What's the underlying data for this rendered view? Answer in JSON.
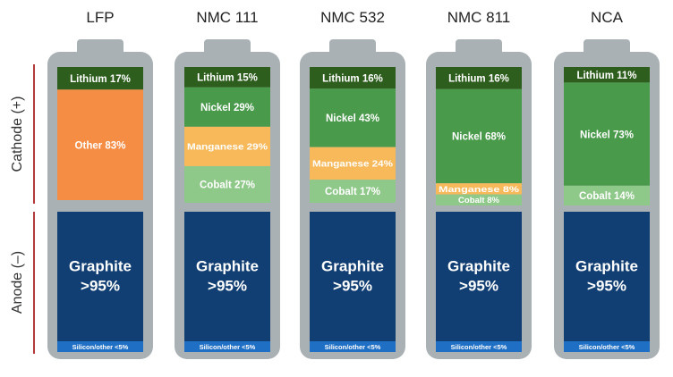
{
  "chart_data": {
    "type": "bar",
    "stacked": true,
    "axis_labels": {
      "cathode": "Cathode (+)",
      "anode": "Anode (–)"
    },
    "colors": {
      "Lithium": "#2e5e1e",
      "Other": "#f68d45",
      "Nickel": "#4a9a4c",
      "Manganese": "#f7b95a",
      "Cobalt": "#8fc98a",
      "Graphite": "#123f73",
      "Silicon": "#1f6fc4",
      "casing": "#a9b1b5"
    },
    "batteries": [
      {
        "name": "LFP",
        "cathode": [
          {
            "label": "Lithium 17%",
            "component": "Lithium",
            "value": 17
          },
          {
            "label": "Other 83%",
            "component": "Other",
            "value": 83
          }
        ],
        "anode": {
          "graphite_line1": "Graphite",
          "graphite_line2": ">95%",
          "graphite_value": 95,
          "other_label": "Silicon/other <5%",
          "other_value": 5
        }
      },
      {
        "name": "NMC 111",
        "cathode": [
          {
            "label": "Lithium 15%",
            "component": "Lithium",
            "value": 15
          },
          {
            "label": "Nickel 29%",
            "component": "Nickel",
            "value": 29
          },
          {
            "label": "Manganese 29%",
            "component": "Manganese",
            "value": 29
          },
          {
            "label": "Cobalt 27%",
            "component": "Cobalt",
            "value": 27
          }
        ],
        "anode": {
          "graphite_line1": "Graphite",
          "graphite_line2": ">95%",
          "graphite_value": 95,
          "other_label": "Silicon/other <5%",
          "other_value": 5
        }
      },
      {
        "name": "NMC 532",
        "cathode": [
          {
            "label": "Lithium 16%",
            "component": "Lithium",
            "value": 16
          },
          {
            "label": "Nickel 43%",
            "component": "Nickel",
            "value": 43
          },
          {
            "label": "Manganese 24%",
            "component": "Manganese",
            "value": 24
          },
          {
            "label": "Cobalt 17%",
            "component": "Cobalt",
            "value": 17
          }
        ],
        "anode": {
          "graphite_line1": "Graphite",
          "graphite_line2": ">95%",
          "graphite_value": 95,
          "other_label": "Silicon/other <5%",
          "other_value": 5
        }
      },
      {
        "name": "NMC 811",
        "cathode": [
          {
            "label": "Lithium 16%",
            "component": "Lithium",
            "value": 16
          },
          {
            "label": "Nickel 68%",
            "component": "Nickel",
            "value": 68
          },
          {
            "label": "Manganese 8%",
            "component": "Manganese",
            "value": 8
          },
          {
            "label": "Cobalt 8%",
            "component": "Cobalt",
            "value": 8
          }
        ],
        "anode": {
          "graphite_line1": "Graphite",
          "graphite_line2": ">95%",
          "graphite_value": 95,
          "other_label": "Silicon/other <5%",
          "other_value": 5
        }
      },
      {
        "name": "NCA",
        "cathode": [
          {
            "label": "Lithium 11%",
            "component": "Lithium",
            "value": 11
          },
          {
            "label": "Nickel 73%",
            "component": "Nickel",
            "value": 73
          },
          {
            "label": "Cobalt 14%",
            "component": "Cobalt",
            "value": 14
          }
        ],
        "anode": {
          "graphite_line1": "Graphite",
          "graphite_line2": ">95%",
          "graphite_value": 95,
          "other_label": "Silicon/other <5%",
          "other_value": 5
        }
      }
    ]
  }
}
